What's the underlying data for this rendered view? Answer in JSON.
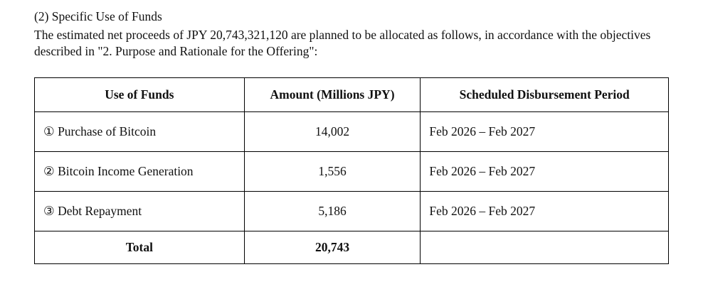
{
  "page": {
    "heading": "(2) Specific Use of Funds",
    "paragraph": "The estimated net proceeds of JPY 20,743,321,120 are planned to be allocated as follows, in accordance with the objectives described in \"2. Purpose and Rationale for the Offering\":"
  },
  "table": {
    "headers": [
      "Use of Funds",
      "Amount (Millions JPY)",
      "Scheduled Disbursement Period"
    ],
    "rows": [
      {
        "use": "① Purchase of Bitcoin",
        "amount": "14,002",
        "period": "Feb 2026 – Feb 2027"
      },
      {
        "use": "② Bitcoin Income Generation",
        "amount": "1,556",
        "period": "Feb 2026 – Feb 2027"
      },
      {
        "use": "③ Debt Repayment",
        "amount": "5,186",
        "period": "Feb 2026 – Feb 2027"
      }
    ],
    "total_row": {
      "use": "Total",
      "amount": "20,743",
      "period": ""
    }
  }
}
